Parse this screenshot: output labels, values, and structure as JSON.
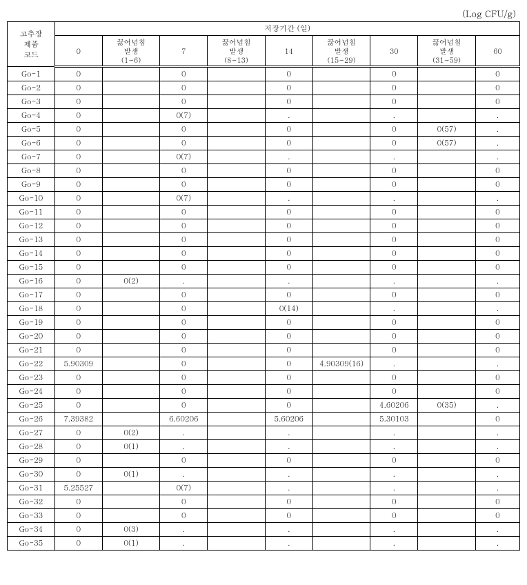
{
  "unit_label": "(Log CFU/g)",
  "header": {
    "code_col": "고추장\n제품\n코드",
    "period_title": "저장기간 (일)",
    "cols": [
      "0",
      "끓어넘침\n발생\n(1~6)",
      "7",
      "끓어넘침\n발생\n(8~13)",
      "14",
      "끓어넘침\n발생\n(15~29)",
      "30",
      "끓어넘침\n발생\n(31~59)",
      "60"
    ]
  },
  "rows": [
    {
      "code": "Go-1",
      "v": [
        "0",
        "",
        "0",
        "",
        "0",
        "",
        "0",
        "",
        "0"
      ]
    },
    {
      "code": "Go-2",
      "v": [
        "0",
        "",
        "0",
        "",
        "0",
        "",
        "0",
        "",
        "0"
      ]
    },
    {
      "code": "Go-3",
      "v": [
        "0",
        "",
        "0",
        "",
        "0",
        "",
        "0",
        "",
        "0"
      ]
    },
    {
      "code": "Go-4",
      "v": [
        "0",
        "",
        "0(7)",
        "",
        ".",
        "",
        ".",
        "",
        "."
      ]
    },
    {
      "code": "Go-5",
      "v": [
        "0",
        "",
        "0",
        "",
        "0",
        "",
        "0",
        "0(57)",
        "."
      ]
    },
    {
      "code": "Go-6",
      "v": [
        "0",
        "",
        "0",
        "",
        "0",
        "",
        "0",
        "0(57)",
        "."
      ]
    },
    {
      "code": "Go-7",
      "v": [
        "0",
        "",
        "0(7)",
        "",
        ".",
        "",
        ".",
        "",
        "."
      ]
    },
    {
      "code": "Go-8",
      "v": [
        "0",
        "",
        "0",
        "",
        "0",
        "",
        "0",
        "",
        "0"
      ]
    },
    {
      "code": "Go-9",
      "v": [
        "0",
        "",
        "0",
        "",
        "0",
        "",
        "0",
        "",
        "0"
      ]
    },
    {
      "code": "Go-10",
      "v": [
        "0",
        "",
        "0(7)",
        "",
        ".",
        "",
        ".",
        "",
        "."
      ]
    },
    {
      "code": "Go-11",
      "v": [
        "0",
        "",
        "0",
        "",
        "0",
        "",
        "0",
        "",
        "0"
      ]
    },
    {
      "code": "Go-12",
      "v": [
        "0",
        "",
        "0",
        "",
        "0",
        "",
        "0",
        "",
        "0"
      ]
    },
    {
      "code": "Go-13",
      "v": [
        "0",
        "",
        "0",
        "",
        "0",
        "",
        "0",
        "",
        "0"
      ]
    },
    {
      "code": "Go-14",
      "v": [
        "0",
        "",
        "0",
        "",
        "0",
        "",
        "0",
        "",
        "0"
      ]
    },
    {
      "code": "Go-15",
      "v": [
        "0",
        "",
        "0",
        "",
        "0",
        "",
        "0",
        "",
        "0"
      ]
    },
    {
      "code": "Go-16",
      "v": [
        "0",
        "0(2)",
        ".",
        "",
        ".",
        "",
        ".",
        "",
        "."
      ]
    },
    {
      "code": "Go-17",
      "v": [
        "0",
        "",
        "0",
        "",
        "0",
        "",
        "0",
        "",
        "0"
      ]
    },
    {
      "code": "Go-18",
      "v": [
        "0",
        "",
        "0",
        "",
        "0(14)",
        "",
        ".",
        "",
        "."
      ]
    },
    {
      "code": "Go-19",
      "v": [
        "0",
        "",
        "0",
        "",
        "0",
        "",
        "0",
        "",
        "0"
      ]
    },
    {
      "code": "Go-20",
      "v": [
        "0",
        "",
        "0",
        "",
        "0",
        "",
        "0",
        "",
        "0"
      ]
    },
    {
      "code": "Go-21",
      "v": [
        "0",
        "",
        "0",
        "",
        "0",
        "",
        "0",
        "",
        "0"
      ]
    },
    {
      "code": "Go-22",
      "v": [
        "5.90309",
        "",
        "0",
        "",
        "0",
        "4.90309(16)",
        ".",
        "",
        "."
      ]
    },
    {
      "code": "Go-23",
      "v": [
        "0",
        "",
        "0",
        "",
        "0",
        "",
        "0",
        "",
        "0"
      ]
    },
    {
      "code": "Go-24",
      "v": [
        "0",
        "",
        "0",
        "",
        "0",
        "",
        "0",
        "",
        "0"
      ]
    },
    {
      "code": "Go-25",
      "v": [
        "0",
        "",
        "0",
        "",
        "0",
        "",
        "4.60206",
        "0(35)",
        "."
      ]
    },
    {
      "code": "Go-26",
      "v": [
        "7.39382",
        "",
        "6.60206",
        "",
        "5.60206",
        "",
        "5.30103",
        "",
        "0"
      ]
    },
    {
      "code": "Go-27",
      "v": [
        "0",
        "0(2)",
        ".",
        "",
        ".",
        "",
        ".",
        "",
        "."
      ]
    },
    {
      "code": "Go-28",
      "v": [
        "0",
        "0(1)",
        ".",
        "",
        ".",
        "",
        ".",
        "",
        "."
      ]
    },
    {
      "code": "Go-29",
      "v": [
        "0",
        "",
        "0",
        "",
        "0",
        "",
        "0",
        "",
        "0"
      ]
    },
    {
      "code": "Go-30",
      "v": [
        "0",
        "0(1)",
        ".",
        "",
        ".",
        "",
        ".",
        "",
        "."
      ]
    },
    {
      "code": "Go-31",
      "v": [
        "5.25527",
        "",
        "0(7)",
        "",
        ".",
        "",
        ".",
        "",
        "."
      ]
    },
    {
      "code": "Go-32",
      "v": [
        "0",
        "",
        "0",
        "",
        "0",
        "",
        "0",
        "",
        "0"
      ]
    },
    {
      "code": "Go-33",
      "v": [
        "0",
        "",
        "0",
        "",
        "0",
        "",
        "0",
        "",
        "0"
      ]
    },
    {
      "code": "Go-34",
      "v": [
        "0",
        "0(3)",
        ".",
        "",
        ".",
        "",
        ".",
        "",
        "."
      ]
    },
    {
      "code": "Go-35",
      "v": [
        "0",
        "0(1)",
        ".",
        "",
        ".",
        "",
        ".",
        "",
        "."
      ]
    }
  ],
  "style": {
    "background_color": "#ffffff",
    "border_color": "#000000",
    "text_color": "#000000",
    "header_fontsize": 11,
    "body_fontsize": 11,
    "unit_fontsize": 13
  }
}
